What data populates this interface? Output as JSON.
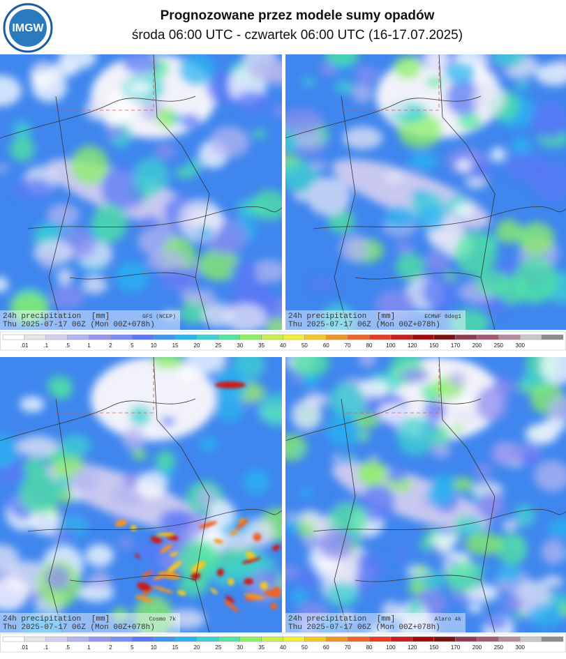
{
  "header": {
    "logo": "IMGW",
    "title": "Prognozowane przez modele sumy opadów",
    "subtitle": "środa 06:00 UTC - czwartek 06:00 UTC (16-17.07.2025)"
  },
  "panels": [
    {
      "label": "24h precipitation",
      "unit": "[mm]",
      "model": "GFS (NCEP)",
      "time": "Thu 2025-07-17 06Z (Mon 00Z+078h)"
    },
    {
      "label": "24h precipitation",
      "unit": "[mm]",
      "model": "ECMWF 0deg1",
      "time": "Thu 2025-07-17 06Z (Mon 00Z+078h)"
    },
    {
      "label": "24h precipitation",
      "unit": "[mm]",
      "model": "Cosmo 7k",
      "time": "Thu 2025-07-17 06Z (Mon 00Z+078h)"
    },
    {
      "label": "24h precipitation",
      "unit": "[mm]",
      "model": "Alaro 4k",
      "time": "Thu 2025-07-17 06Z (Mon 00Z+078h)"
    }
  ],
  "colorbar": {
    "labels": [
      ".01",
      ".1",
      ".5",
      "1",
      "2",
      "5",
      "10",
      "15",
      "20",
      "25",
      "30",
      "35",
      "40",
      "50",
      "60",
      "70",
      "80",
      "100",
      "120",
      "150",
      "170",
      "200",
      "250",
      "300"
    ]
  }
}
